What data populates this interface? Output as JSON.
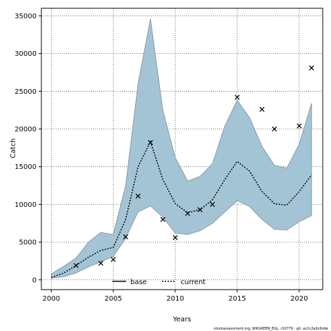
{
  "chart_data": {
    "type": "line",
    "title": "",
    "xlabel": "Years",
    "ylabel": "Catch",
    "xlim": [
      1999.2,
      2021.9
    ],
    "ylim": [
      -1300,
      36000
    ],
    "x_ticks": [
      2000,
      2005,
      2010,
      2015,
      2020
    ],
    "y_ticks": [
      0,
      5000,
      10000,
      15000,
      20000,
      25000,
      30000,
      35000
    ],
    "grid": true,
    "legend_position": "bottom-center",
    "band": {
      "years": [
        2000,
        2001,
        2002,
        2003,
        2004,
        2005,
        2006,
        2007,
        2008,
        2009,
        2010,
        2011,
        2012,
        2013,
        2014,
        2015,
        2016,
        2017,
        2018,
        2019,
        2020,
        2021
      ],
      "upper": [
        800,
        1800,
        2900,
        5000,
        6300,
        6000,
        12500,
        26000,
        34600,
        22500,
        16200,
        13100,
        13700,
        15400,
        20400,
        23800,
        21500,
        17700,
        15200,
        14800,
        18000,
        23400
      ],
      "lower": [
        200,
        400,
        900,
        1700,
        2400,
        3100,
        5500,
        9000,
        9800,
        8300,
        6200,
        6000,
        6500,
        7500,
        9000,
        10500,
        9700,
        8000,
        6700,
        6600,
        7700,
        8500
      ],
      "color": "#a3c4d5",
      "edge_color": "#7f8c94"
    },
    "series": [
      {
        "name": "base",
        "style": "solid",
        "color": "#000000",
        "x": [],
        "values": []
      },
      {
        "name": "current",
        "style": "dotted",
        "color": "#000000",
        "x": [
          2000,
          2001,
          2002,
          2003,
          2004,
          2005,
          2006,
          2007,
          2008,
          2009,
          2010,
          2011,
          2012,
          2013,
          2014,
          2015,
          2016,
          2017,
          2018,
          2019,
          2020,
          2021
        ],
        "values": [
          300,
          900,
          1900,
          3000,
          3900,
          4300,
          8000,
          15000,
          18300,
          13300,
          10100,
          8900,
          9300,
          10600,
          13300,
          15700,
          14400,
          11700,
          10100,
          9900,
          11700,
          13900
        ]
      }
    ],
    "observations": {
      "marker": "x",
      "x": [
        2002,
        2004,
        2005,
        2006,
        2007,
        2008,
        2009,
        2010,
        2011,
        2012,
        2013,
        2015,
        2017,
        2018,
        2020,
        2021
      ],
      "values": [
        1900,
        2200,
        2700,
        5700,
        11100,
        18200,
        8000,
        5600,
        8800,
        9300,
        10000,
        24200,
        22600,
        20000,
        20400,
        28100
      ]
    },
    "footer": "stockassessment.org, WKGREEN_EGL, r16779 , git: ec2c2a0c6dde"
  }
}
